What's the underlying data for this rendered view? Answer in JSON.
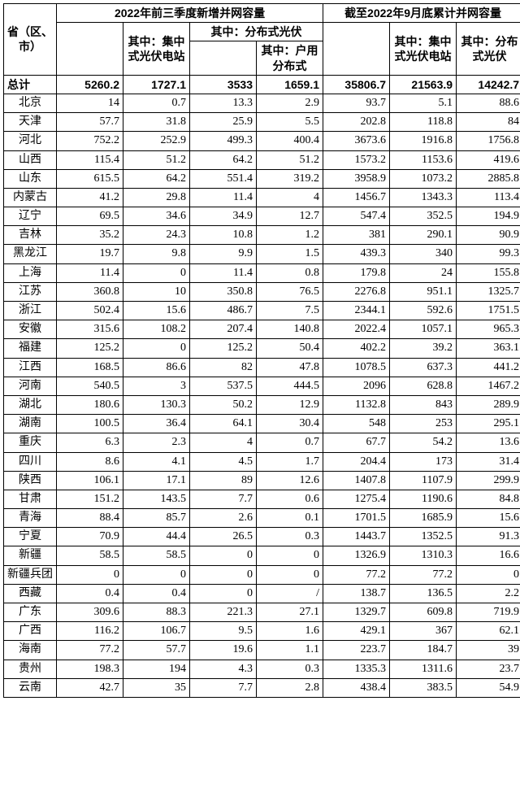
{
  "headers": {
    "province": "省（区、市）",
    "group1": "2022年前三季度新增并网容量",
    "group2": "截至2022年9月底累计并网容量",
    "g1_centralized": "其中：集中式光伏电站",
    "g1_distributed": "其中：分布式光伏",
    "g1_household": "其中：户用分布式",
    "g2_centralized": "其中：集中式光伏电站",
    "g2_distributed": "其中：分布式光伏"
  },
  "total": {
    "label": "总计",
    "v": [
      "5260.2",
      "1727.1",
      "3533",
      "1659.1",
      "35806.7",
      "21563.9",
      "14242.7"
    ]
  },
  "rows": [
    {
      "label": "北京",
      "v": [
        "14",
        "0.7",
        "13.3",
        "2.9",
        "93.7",
        "5.1",
        "88.6"
      ]
    },
    {
      "label": "天津",
      "v": [
        "57.7",
        "31.8",
        "25.9",
        "5.5",
        "202.8",
        "118.8",
        "84"
      ]
    },
    {
      "label": "河北",
      "v": [
        "752.2",
        "252.9",
        "499.3",
        "400.4",
        "3673.6",
        "1916.8",
        "1756.8"
      ]
    },
    {
      "label": "山西",
      "v": [
        "115.4",
        "51.2",
        "64.2",
        "51.2",
        "1573.2",
        "1153.6",
        "419.6"
      ]
    },
    {
      "label": "山东",
      "v": [
        "615.5",
        "64.2",
        "551.4",
        "319.2",
        "3958.9",
        "1073.2",
        "2885.8"
      ]
    },
    {
      "label": "内蒙古",
      "v": [
        "41.2",
        "29.8",
        "11.4",
        "4",
        "1456.7",
        "1343.3",
        "113.4"
      ]
    },
    {
      "label": "辽宁",
      "v": [
        "69.5",
        "34.6",
        "34.9",
        "12.7",
        "547.4",
        "352.5",
        "194.9"
      ]
    },
    {
      "label": "吉林",
      "v": [
        "35.2",
        "24.3",
        "10.8",
        "1.2",
        "381",
        "290.1",
        "90.9"
      ]
    },
    {
      "label": "黑龙江",
      "v": [
        "19.7",
        "9.8",
        "9.9",
        "1.5",
        "439.3",
        "340",
        "99.3"
      ]
    },
    {
      "label": "上海",
      "v": [
        "11.4",
        "0",
        "11.4",
        "0.8",
        "179.8",
        "24",
        "155.8"
      ]
    },
    {
      "label": "江苏",
      "v": [
        "360.8",
        "10",
        "350.8",
        "76.5",
        "2276.8",
        "951.1",
        "1325.7"
      ]
    },
    {
      "label": "浙江",
      "v": [
        "502.4",
        "15.6",
        "486.7",
        "7.5",
        "2344.1",
        "592.6",
        "1751.5"
      ]
    },
    {
      "label": "安徽",
      "v": [
        "315.6",
        "108.2",
        "207.4",
        "140.8",
        "2022.4",
        "1057.1",
        "965.3"
      ]
    },
    {
      "label": "福建",
      "v": [
        "125.2",
        "0",
        "125.2",
        "50.4",
        "402.2",
        "39.2",
        "363.1"
      ]
    },
    {
      "label": "江西",
      "v": [
        "168.5",
        "86.6",
        "82",
        "47.8",
        "1078.5",
        "637.3",
        "441.2"
      ]
    },
    {
      "label": "河南",
      "v": [
        "540.5",
        "3",
        "537.5",
        "444.5",
        "2096",
        "628.8",
        "1467.2"
      ]
    },
    {
      "label": "湖北",
      "v": [
        "180.6",
        "130.3",
        "50.2",
        "12.9",
        "1132.8",
        "843",
        "289.9"
      ]
    },
    {
      "label": "湖南",
      "v": [
        "100.5",
        "36.4",
        "64.1",
        "30.4",
        "548",
        "253",
        "295.1"
      ]
    },
    {
      "label": "重庆",
      "v": [
        "6.3",
        "2.3",
        "4",
        "0.7",
        "67.7",
        "54.2",
        "13.6"
      ]
    },
    {
      "label": "四川",
      "v": [
        "8.6",
        "4.1",
        "4.5",
        "1.7",
        "204.4",
        "173",
        "31.4"
      ]
    },
    {
      "label": "陕西",
      "v": [
        "106.1",
        "17.1",
        "89",
        "12.6",
        "1407.8",
        "1107.9",
        "299.9"
      ]
    },
    {
      "label": "甘肃",
      "v": [
        "151.2",
        "143.5",
        "7.7",
        "0.6",
        "1275.4",
        "1190.6",
        "84.8"
      ]
    },
    {
      "label": "青海",
      "v": [
        "88.4",
        "85.7",
        "2.6",
        "0.1",
        "1701.5",
        "1685.9",
        "15.6"
      ]
    },
    {
      "label": "宁夏",
      "v": [
        "70.9",
        "44.4",
        "26.5",
        "0.3",
        "1443.7",
        "1352.5",
        "91.3"
      ]
    },
    {
      "label": "新疆",
      "v": [
        "58.5",
        "58.5",
        "0",
        "0",
        "1326.9",
        "1310.3",
        "16.6"
      ]
    },
    {
      "label": "新疆兵团",
      "v": [
        "0",
        "0",
        "0",
        "0",
        "77.2",
        "77.2",
        "0"
      ]
    },
    {
      "label": "西藏",
      "v": [
        "0.4",
        "0.4",
        "0",
        "/",
        "138.7",
        "136.5",
        "2.2"
      ]
    },
    {
      "label": "广东",
      "v": [
        "309.6",
        "88.3",
        "221.3",
        "27.1",
        "1329.7",
        "609.8",
        "719.9"
      ]
    },
    {
      "label": "广西",
      "v": [
        "116.2",
        "106.7",
        "9.5",
        "1.6",
        "429.1",
        "367",
        "62.1"
      ]
    },
    {
      "label": "海南",
      "v": [
        "77.2",
        "57.7",
        "19.6",
        "1.1",
        "223.7",
        "184.7",
        "39"
      ]
    },
    {
      "label": "贵州",
      "v": [
        "198.3",
        "194",
        "4.3",
        "0.3",
        "1335.3",
        "1311.6",
        "23.7"
      ]
    },
    {
      "label": "云南",
      "v": [
        "42.7",
        "35",
        "7.7",
        "2.8",
        "438.4",
        "383.5",
        "54.9"
      ]
    }
  ]
}
